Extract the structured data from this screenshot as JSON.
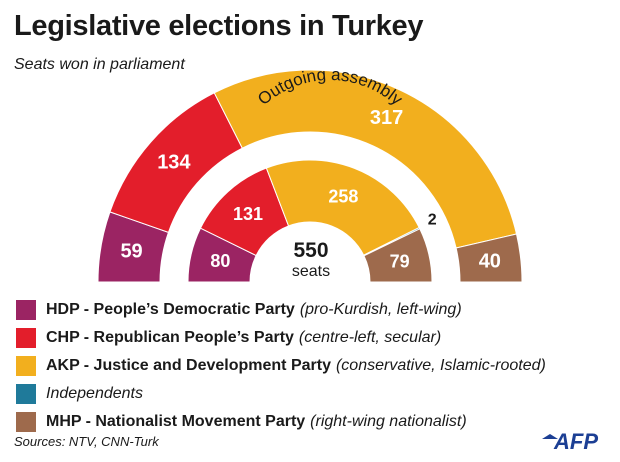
{
  "title": "Legislative elections in Turkey",
  "subtitle": "Seats won in parliament",
  "chart_data": {
    "type": "pie",
    "variant": "parliament-semicircle",
    "rings": [
      {
        "name": "",
        "position": "outer",
        "segments": [
          {
            "party": "HDP",
            "seats": 59
          },
          {
            "party": "CHP",
            "seats": 134
          },
          {
            "party": "AKP",
            "seats": 317
          },
          {
            "party": "MHP",
            "seats": 40
          }
        ]
      },
      {
        "name": "Outgoing assembly",
        "position": "inner",
        "segments": [
          {
            "party": "HDP",
            "seats": 80
          },
          {
            "party": "CHP",
            "seats": 131
          },
          {
            "party": "AKP",
            "seats": 258
          },
          {
            "party": "Independents",
            "seats": 2
          },
          {
            "party": "MHP",
            "seats": 79
          }
        ]
      }
    ],
    "total": "550",
    "total_unit": "seats"
  },
  "legend": [
    {
      "abbr": "HDP",
      "name": "- People’s Democratic Party",
      "note": "(pro-Kurdish, left-wing)",
      "color": "#9b2463"
    },
    {
      "abbr": "CHP",
      "name": "- Republican People’s Party",
      "note": "(centre-left, secular)",
      "color": "#e31e2b"
    },
    {
      "abbr": "AKP",
      "name": "- Justice and Development Party",
      "note": "(conservative, Islamic-rooted)",
      "color": "#f2af1e"
    },
    {
      "abbr": "",
      "name": "Independents",
      "note": "",
      "color": "#1f7a9a"
    },
    {
      "abbr": "MHP",
      "name": "- Nationalist Movement Party",
      "note": "(right-wing nationalist)",
      "color": "#9e6a4c"
    }
  ],
  "colors": {
    "HDP": "#9b2463",
    "CHP": "#e31e2b",
    "AKP": "#f2af1e",
    "Independents": "#1f7a9a",
    "MHP": "#9e6a4c"
  },
  "source": "Sources: NTV, CNN-Turk",
  "logo": "AFP"
}
